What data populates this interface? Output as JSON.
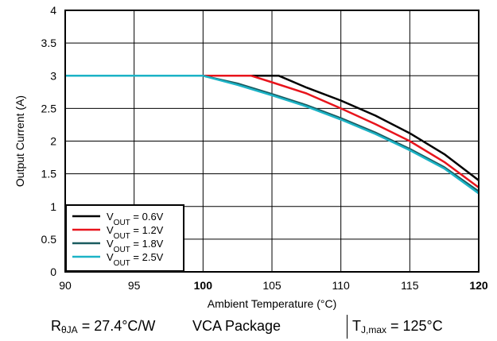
{
  "chart_data": {
    "type": "line",
    "xlabel": "Ambient Temperature (°C)",
    "ylabel": "Output Current (A)",
    "xlim": [
      90,
      120
    ],
    "ylim": [
      0,
      4
    ],
    "xticks": [
      90,
      95,
      100,
      105,
      110,
      115,
      120
    ],
    "yticks": [
      0,
      0.5,
      1,
      1.5,
      2,
      2.5,
      3,
      3.5,
      4
    ],
    "xticklabels": [
      "90",
      "95",
      "100",
      "105",
      "110",
      "115",
      "120"
    ],
    "yticklabels": [
      "0",
      "0.5",
      "1",
      "1.5",
      "2",
      "2.5",
      "3",
      "3.5",
      "4"
    ],
    "grid": true,
    "legend_position": "bottom-left",
    "series": [
      {
        "name": "V_OUT = 0.6V",
        "label_main": "V",
        "label_sub": "OUT",
        "label_rest": " = 0.6V",
        "color": "#000000",
        "x": [
          90,
          105.5,
          107.5,
          110,
          112.5,
          115,
          117.5,
          120
        ],
        "y": [
          3.0,
          3.0,
          2.82,
          2.62,
          2.39,
          2.12,
          1.8,
          1.4
        ]
      },
      {
        "name": "V_OUT = 1.2V",
        "label_main": "V",
        "label_sub": "OUT",
        "label_rest": " = 1.2V",
        "color": "#e8141c",
        "x": [
          90,
          103.5,
          105,
          107.5,
          110,
          112.5,
          115,
          117.5,
          120
        ],
        "y": [
          3.0,
          3.0,
          2.9,
          2.73,
          2.5,
          2.26,
          2.0,
          1.68,
          1.29
        ]
      },
      {
        "name": "V_OUT = 1.8V",
        "label_main": "V",
        "label_sub": "OUT",
        "label_rest": " = 1.8V",
        "color": "#1a5b5f",
        "x": [
          90,
          100,
          102.5,
          105,
          107.5,
          110,
          112.5,
          115,
          117.5,
          120
        ],
        "y": [
          3.0,
          3.0,
          2.88,
          2.72,
          2.55,
          2.35,
          2.13,
          1.88,
          1.6,
          1.23
        ]
      },
      {
        "name": "V_OUT = 2.5V",
        "label_main": "V",
        "label_sub": "OUT",
        "label_rest": " = 2.5V",
        "color": "#1cb3c6",
        "x": [
          90,
          100,
          102.5,
          105,
          107.5,
          110,
          112.5,
          115,
          117.5,
          120
        ],
        "y": [
          3.0,
          3.0,
          2.86,
          2.7,
          2.53,
          2.33,
          2.11,
          1.86,
          1.58,
          1.2
        ]
      }
    ]
  },
  "footer": {
    "r_main": "R",
    "r_sub": "θJA",
    "r_rest": " = 27.4°C/W",
    "package": "VCA Package",
    "t_main": "T",
    "t_sub": "J,max",
    "t_rest": " = 125°C"
  }
}
